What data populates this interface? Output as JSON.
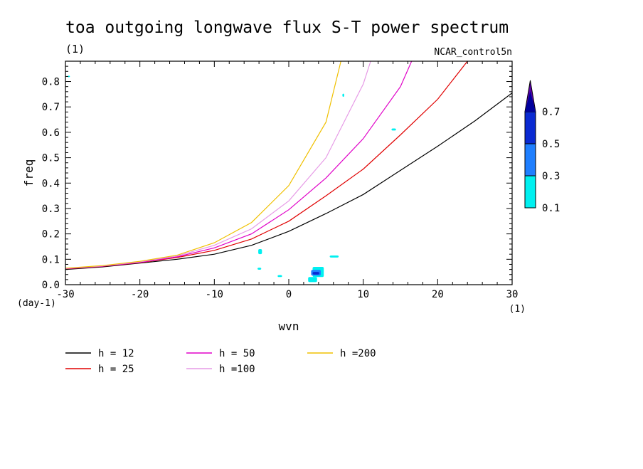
{
  "chart_data": {
    "type": "line",
    "title": "toa outgoing longwave flux S-T power spectrum",
    "subtitle": "(1)",
    "run_label": "NCAR_control5n",
    "xlabel": "wvn",
    "ylabel": "freq",
    "x_units": "(1)",
    "y_units": "(day-1)",
    "xlim": [
      -30,
      30
    ],
    "ylim": [
      0,
      0.88
    ],
    "x_ticks": [
      -30,
      -20,
      -10,
      0,
      10,
      20,
      30
    ],
    "x_tick_labels": [
      "-30",
      "-20",
      "-10",
      "0",
      "10",
      "20",
      "30"
    ],
    "y_ticks": [
      0,
      0.1,
      0.2,
      0.3,
      0.4,
      0.5,
      0.6,
      0.7,
      0.8
    ],
    "y_tick_labels": [
      "0.0",
      "0.1",
      "0.2",
      "0.3",
      "0.4",
      "0.5",
      "0.6",
      "0.7",
      "0.8"
    ],
    "series": [
      {
        "name": "h = 12",
        "color": "#000000",
        "x": [
          -30,
          -25,
          -20,
          -15,
          -10,
          -5,
          0,
          5,
          10,
          15,
          20,
          25,
          30
        ],
        "y": [
          0.06,
          0.07,
          0.085,
          0.1,
          0.12,
          0.155,
          0.21,
          0.28,
          0.355,
          0.45,
          0.545,
          0.645,
          0.755
        ]
      },
      {
        "name": "h = 25",
        "color": "#e00000",
        "x": [
          -30,
          -25,
          -20,
          -15,
          -10,
          -5,
          0,
          5,
          10,
          15,
          20,
          24
        ],
        "y": [
          0.062,
          0.072,
          0.087,
          0.107,
          0.135,
          0.18,
          0.25,
          0.35,
          0.455,
          0.59,
          0.73,
          0.88
        ]
      },
      {
        "name": "h = 50",
        "color": "#e000c8",
        "x": [
          -30,
          -25,
          -20,
          -15,
          -10,
          -5,
          0,
          5,
          10,
          15,
          16.5
        ],
        "y": [
          0.063,
          0.073,
          0.088,
          0.11,
          0.145,
          0.2,
          0.295,
          0.42,
          0.575,
          0.78,
          0.88
        ]
      },
      {
        "name": "h =100",
        "color": "#e69ae6",
        "x": [
          -30,
          -25,
          -20,
          -15,
          -10,
          -5,
          0,
          5,
          10,
          11
        ],
        "y": [
          0.064,
          0.074,
          0.09,
          0.113,
          0.155,
          0.22,
          0.33,
          0.5,
          0.79,
          0.88
        ]
      },
      {
        "name": "h =200",
        "color": "#f0c000",
        "x": [
          -30,
          -25,
          -20,
          -15,
          -10,
          -5,
          0,
          5,
          7
        ],
        "y": [
          0.065,
          0.075,
          0.092,
          0.116,
          0.165,
          0.245,
          0.39,
          0.64,
          0.88
        ]
      }
    ],
    "contours": [
      {
        "level": "0.1-0.3",
        "color": "#00f0f0",
        "x": 3.2,
        "y": 0.03,
        "w": 1.5,
        "h": 0.04
      },
      {
        "level": "0.1-0.3",
        "color": "#00f0f0",
        "x": 2.6,
        "y": 0.01,
        "w": 1.2,
        "h": 0.02
      },
      {
        "level": "0.1-0.3",
        "color": "#00f0f0",
        "x": -4.1,
        "y": 0.12,
        "w": 0.5,
        "h": 0.02
      },
      {
        "level": "0.1-0.3",
        "color": "#00f0f0",
        "x": -4.2,
        "y": 0.059,
        "w": 0.5,
        "h": 0.008
      },
      {
        "level": "0.1-0.3",
        "color": "#00f0f0",
        "x": -1.5,
        "y": 0.03,
        "w": 0.6,
        "h": 0.008
      },
      {
        "level": "0.1-0.3",
        "color": "#00f0f0",
        "x": 5.5,
        "y": 0.107,
        "w": 1.2,
        "h": 0.008
      },
      {
        "level": "0.1-0.3",
        "color": "#00f0f0",
        "x": 7.2,
        "y": 0.74,
        "w": 0.25,
        "h": 0.012
      },
      {
        "level": "0.1-0.3",
        "color": "#00f0f0",
        "x": 13.8,
        "y": 0.607,
        "w": 0.6,
        "h": 0.008
      },
      {
        "level": "0.1-0.3",
        "color": "#00f0f0",
        "x": -29.7,
        "y": 0.817,
        "w": 0.3,
        "h": 0.006
      },
      {
        "level": "0.3-0.5",
        "color": "#1f7fff",
        "x": 3.0,
        "y": 0.036,
        "w": 1.3,
        "h": 0.022
      },
      {
        "level": "0.5-0.7",
        "color": "#0a2ad2",
        "x": 3.2,
        "y": 0.04,
        "w": 0.9,
        "h": 0.01
      }
    ],
    "colorbar": {
      "levels": [
        "0.1",
        "0.3",
        "0.5",
        "0.7"
      ],
      "colors": [
        "#00f0f0",
        "#1f7fff",
        "#0a2ad2",
        "#00009c",
        "#5a00a8"
      ]
    }
  }
}
